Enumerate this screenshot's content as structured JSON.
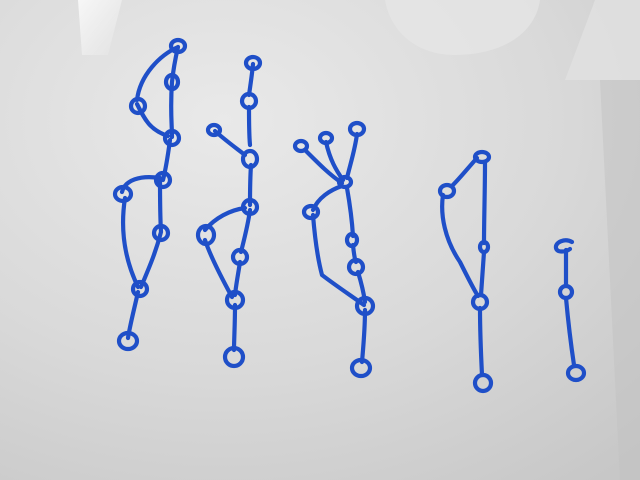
{
  "scene": {
    "board_color": "#dcdcdc",
    "marker_color": "#1f4fc8",
    "glare_color": "#f2f2f2"
  }
}
